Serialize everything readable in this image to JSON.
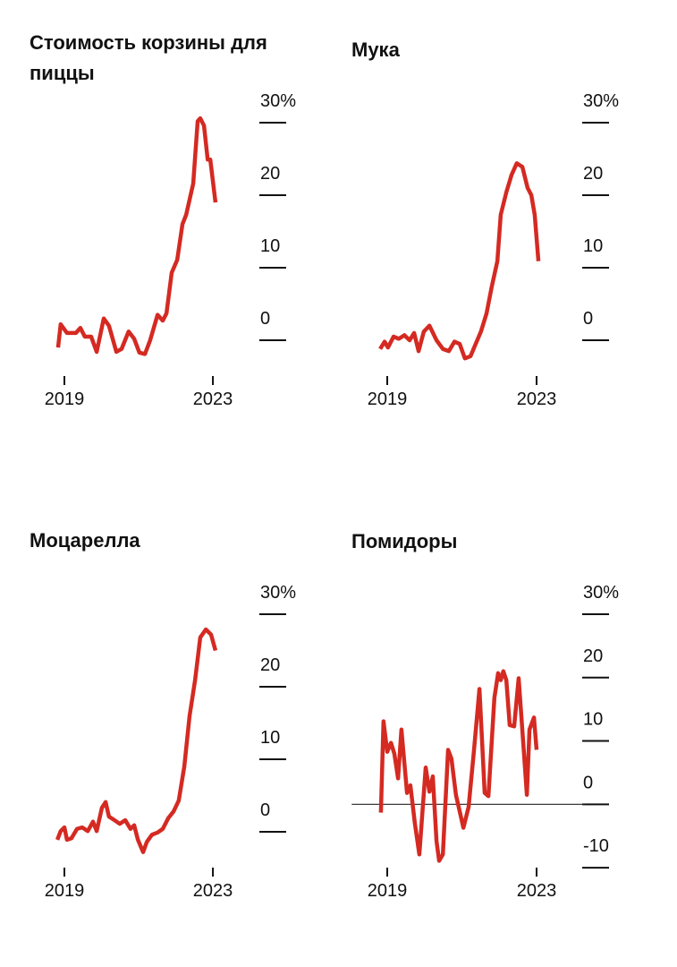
{
  "chart_data": [
    {
      "type": "line",
      "title": "Стоимость корзины для пиццы",
      "color": "#d42a22",
      "x": [
        2018.83,
        2018.9,
        2019.07,
        2019.31,
        2019.43,
        2019.55,
        2019.72,
        2019.87,
        2020.06,
        2020.2,
        2020.4,
        2020.54,
        2020.73,
        2020.88,
        2021.02,
        2021.17,
        2021.31,
        2021.51,
        2021.65,
        2021.75,
        2021.89,
        2022.04,
        2022.18,
        2022.28,
        2022.47,
        2022.59,
        2022.66,
        2022.76,
        2022.86,
        2022.93,
        2023.07
      ],
      "values": [
        -1,
        2.2,
        1,
        1,
        1.7,
        0.5,
        0.5,
        -1.6,
        3,
        2,
        -1.6,
        -1.2,
        1.2,
        0.2,
        -1.7,
        -1.9,
        0,
        3.5,
        2.7,
        3.7,
        9.3,
        11.1,
        16,
        17.3,
        21.6,
        30.2,
        30.6,
        29.6,
        24.9,
        24.9,
        19
      ],
      "xlim": [
        2018.6,
        2023.3
      ],
      "xticks": [
        2019,
        2023
      ],
      "ylim": [
        -4,
        32
      ],
      "yticks": [
        {
          "value": 30,
          "label": "30%"
        },
        20,
        10,
        0
      ]
    },
    {
      "type": "line",
      "title": "Мука",
      "color": "#d42a22",
      "x": [
        2018.81,
        2018.93,
        2019.02,
        2019.17,
        2019.31,
        2019.46,
        2019.6,
        2019.72,
        2019.84,
        2019.98,
        2020.13,
        2020.32,
        2020.49,
        2020.65,
        2020.8,
        2020.94,
        2021.08,
        2021.23,
        2021.37,
        2021.51,
        2021.66,
        2021.8,
        2021.95,
        2022.04,
        2022.19,
        2022.33,
        2022.47,
        2022.62,
        2022.76,
        2022.86,
        2022.95,
        2023.05
      ],
      "values": [
        -1.2,
        -0.2,
        -1,
        0.5,
        0.2,
        0.7,
        0,
        1,
        -1.5,
        1.2,
        2,
        0,
        -1.2,
        -1.5,
        -0.2,
        -0.5,
        -2.5,
        -2.2,
        -0.5,
        1.2,
        3.7,
        7.4,
        10.9,
        17.3,
        20.4,
        22.8,
        24.4,
        23.9,
        21,
        20,
        17.3,
        10.9
      ],
      "xlim": [
        2018.6,
        2023.3
      ],
      "xticks": [
        2019,
        2023
      ],
      "ylim": [
        -4,
        32
      ],
      "yticks": [
        {
          "value": 30,
          "label": "30%"
        },
        20,
        10,
        0
      ]
    },
    {
      "type": "line",
      "title": "Моцарелла",
      "color": "#d42a22",
      "x": [
        2018.81,
        2018.9,
        2019,
        2019.07,
        2019.19,
        2019.34,
        2019.48,
        2019.63,
        2019.77,
        2019.87,
        2020.01,
        2020.11,
        2020.2,
        2020.35,
        2020.49,
        2020.64,
        2020.78,
        2020.88,
        2020.98,
        2021.12,
        2021.22,
        2021.36,
        2021.51,
        2021.65,
        2021.8,
        2021.94,
        2022.08,
        2022.23,
        2022.37,
        2022.52,
        2022.66,
        2022.81,
        2022.95,
        2023.07
      ],
      "values": [
        -1.1,
        0.1,
        0.6,
        -1.1,
        -0.9,
        0.4,
        0.6,
        0.1,
        1.4,
        0.1,
        3.3,
        4.1,
        2.1,
        1.6,
        1.1,
        1.6,
        0.4,
        0.9,
        -1.1,
        -2.8,
        -1.4,
        -0.4,
        -0.1,
        0.4,
        1.9,
        2.8,
        4.3,
        9,
        15.9,
        20.9,
        26.8,
        27.9,
        27.2,
        25
      ],
      "xlim": [
        2018.6,
        2023.3
      ],
      "xticks": [
        2019,
        2023
      ],
      "ylim": [
        -4,
        32
      ],
      "yticks": [
        {
          "value": 30,
          "label": "30%"
        },
        20,
        10,
        0
      ]
    },
    {
      "type": "line",
      "title": "Помидоры",
      "color": "#d42a22",
      "zeroline": true,
      "x": [
        2018.83,
        2018.9,
        2019,
        2019.1,
        2019.19,
        2019.29,
        2019.38,
        2019.53,
        2019.62,
        2019.74,
        2019.86,
        2020.03,
        2020.13,
        2020.22,
        2020.32,
        2020.39,
        2020.49,
        2020.63,
        2020.72,
        2020.84,
        2021.04,
        2021.18,
        2021.32,
        2021.47,
        2021.61,
        2021.71,
        2021.87,
        2021.97,
        2022.04,
        2022.11,
        2022.19,
        2022.28,
        2022.4,
        2022.52,
        2022.66,
        2022.74,
        2022.81,
        2022.93,
        2023
      ],
      "values": [
        -1.3,
        13.1,
        8.3,
        9.7,
        8,
        4.1,
        11.8,
        1.8,
        3,
        -3,
        -7.9,
        5.8,
        2,
        4.4,
        -5.8,
        -8.9,
        -7.9,
        8.6,
        7.2,
        1.5,
        -3.7,
        -0.4,
        8.3,
        18.2,
        1.8,
        1.3,
        16.8,
        20.7,
        19.6,
        21,
        19.6,
        12.5,
        12.3,
        19.9,
        8.3,
        1.5,
        11.8,
        13.7,
        8.6
      ],
      "xlim": [
        2018.6,
        2023.3
      ],
      "xticks": [
        2019,
        2023
      ],
      "ylim": [
        -11,
        31
      ],
      "yticks": [
        {
          "value": 30,
          "label": "30%"
        },
        20,
        10,
        0,
        -10
      ]
    }
  ]
}
